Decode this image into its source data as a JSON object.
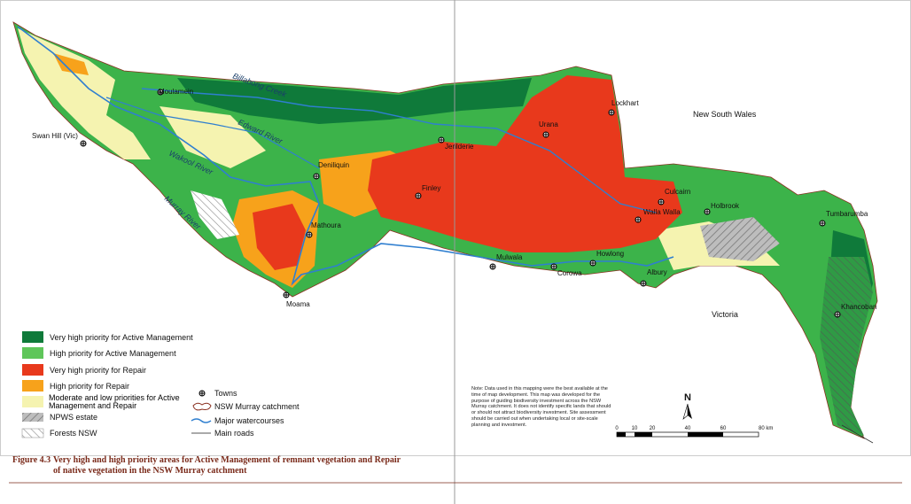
{
  "map": {
    "regions": [
      "New South Wales",
      "Victoria"
    ],
    "towns": [
      "Moulamein",
      "Swan Hill (Vic)",
      "Deniliquin",
      "Jerilderie",
      "Urana",
      "Lockhart",
      "Finley",
      "Mathoura",
      "Moama",
      "Mulwala",
      "Corowa",
      "Howlong",
      "Albury",
      "Walla Walla",
      "Culcairn",
      "Holbrook",
      "Tumbarumba",
      "Khancoban"
    ],
    "rivers": [
      "Billabong Creek",
      "Edward River",
      "Wakool River",
      "Murray River"
    ],
    "north": "N",
    "scale_bar": [
      "0",
      "10",
      "20",
      "40",
      "60",
      "80 km"
    ]
  },
  "legend": {
    "priority": [
      "Very high priority for Active Management",
      "High priority for Active Management",
      "Very high priority for Repair",
      "High priority for Repair",
      "Moderate and low priorities for Active Management and Repair",
      "NPWS estate",
      "Forests NSW"
    ],
    "symbols": [
      "Towns",
      "NSW Murray catchment",
      "Major watercourses",
      "Main roads"
    ]
  },
  "note": "Note: Data used in this mapping were the best available at the time of map development. This map was developed for the purpose of guiding biodiversity investment across the NSW Murray catchment. It does not identify specific lands that should or should not attract biodiversity investment. Site assessment should be carried out when undertaking local or site-scale planning and investment.",
  "caption": {
    "number": "Figure 4.3",
    "text": "Very high and high priority areas for Active Management of remnant vegetation and Repair of native vegetation in the NSW Murray catchment"
  }
}
